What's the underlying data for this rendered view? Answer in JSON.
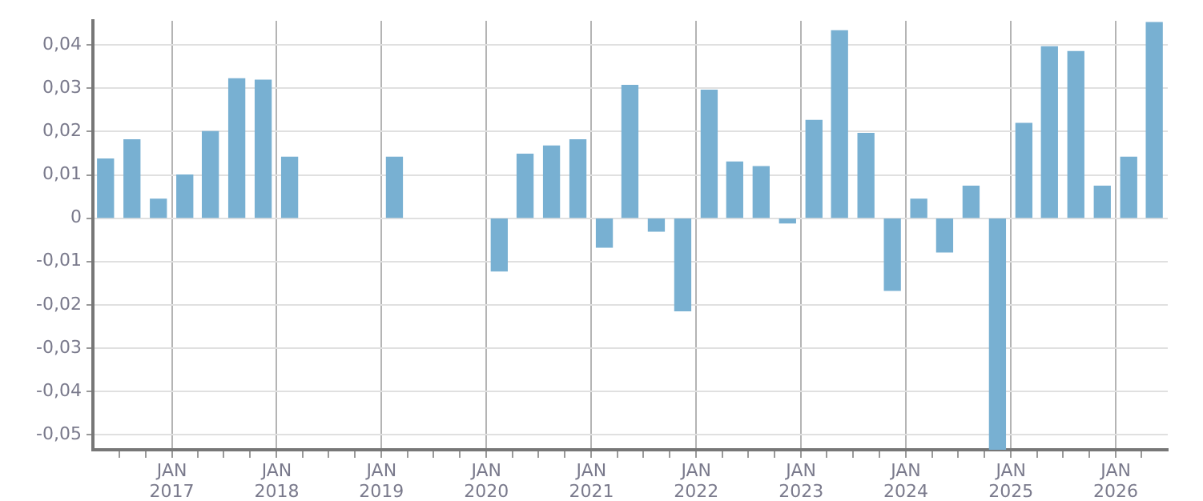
{
  "chart_data": {
    "type": "bar",
    "color": "#78b0d2",
    "x": [
      "2016-05-15",
      "2016-08-15",
      "2016-11-15",
      "2017-02-15",
      "2017-05-15",
      "2017-08-15",
      "2017-11-15",
      "2018-02-15",
      "2019-02-15",
      "2020-02-15",
      "2020-05-15",
      "2020-08-15",
      "2020-11-15",
      "2021-02-15",
      "2021-05-15",
      "2021-08-15",
      "2021-11-15",
      "2022-02-15",
      "2022-05-15",
      "2022-08-15",
      "2022-11-15",
      "2023-02-15",
      "2023-05-15",
      "2023-08-15",
      "2023-11-15",
      "2024-02-15",
      "2024-05-15",
      "2024-08-15",
      "2024-11-15",
      "2025-02-15",
      "2025-05-15",
      "2025-08-15",
      "2025-11-15",
      "2026-02-15",
      "2026-05-15"
    ],
    "values": [
      0.0137,
      0.0181,
      0.0044,
      0.01,
      0.02,
      0.0322,
      0.0319,
      0.0141,
      0.0141,
      -0.0122,
      0.0148,
      0.0167,
      0.0181,
      -0.0067,
      0.0307,
      -0.003,
      -0.0214,
      0.0296,
      0.013,
      0.0119,
      -0.0011,
      0.0226,
      0.0433,
      0.0196,
      -0.0167,
      0.0044,
      -0.0078,
      0.0074,
      -0.0535,
      0.0219,
      0.0396,
      0.0385,
      0.0074,
      0.0141,
      0.0452
    ],
    "xlim": [
      "2016-04-01",
      "2026-07-01"
    ],
    "xticks": [
      {
        "value": "2016-07-01",
        "label": null
      },
      {
        "value": "2016-10-01",
        "label": null
      },
      {
        "value": "2017-01-01",
        "label": "JAN\n2017"
      },
      {
        "value": "2017-04-01",
        "label": null
      },
      {
        "value": "2017-07-01",
        "label": null
      },
      {
        "value": "2017-10-01",
        "label": null
      },
      {
        "value": "2018-01-01",
        "label": "JAN\n2018"
      },
      {
        "value": "2018-04-01",
        "label": null
      },
      {
        "value": "2018-07-01",
        "label": null
      },
      {
        "value": "2018-10-01",
        "label": null
      },
      {
        "value": "2019-01-01",
        "label": "JAN\n2019"
      },
      {
        "value": "2019-04-01",
        "label": null
      },
      {
        "value": "2019-07-01",
        "label": null
      },
      {
        "value": "2019-10-01",
        "label": null
      },
      {
        "value": "2020-01-01",
        "label": "JAN\n2020"
      },
      {
        "value": "2020-04-01",
        "label": null
      },
      {
        "value": "2020-07-01",
        "label": null
      },
      {
        "value": "2020-10-01",
        "label": null
      },
      {
        "value": "2021-01-01",
        "label": "JAN\n2021"
      },
      {
        "value": "2021-04-01",
        "label": null
      },
      {
        "value": "2021-07-01",
        "label": null
      },
      {
        "value": "2021-10-01",
        "label": null
      },
      {
        "value": "2022-01-01",
        "label": "JAN\n2022"
      },
      {
        "value": "2022-04-01",
        "label": null
      },
      {
        "value": "2022-07-01",
        "label": null
      },
      {
        "value": "2022-10-01",
        "label": null
      },
      {
        "value": "2023-01-01",
        "label": "JAN\n2023"
      },
      {
        "value": "2023-04-01",
        "label": null
      },
      {
        "value": "2023-07-01",
        "label": null
      },
      {
        "value": "2023-10-01",
        "label": null
      },
      {
        "value": "2024-01-01",
        "label": "JAN\n2024"
      },
      {
        "value": "2024-04-01",
        "label": null
      },
      {
        "value": "2024-07-01",
        "label": null
      },
      {
        "value": "2024-10-01",
        "label": null
      },
      {
        "value": "2025-01-01",
        "label": "JAN\n2025"
      },
      {
        "value": "2025-04-01",
        "label": null
      },
      {
        "value": "2025-07-01",
        "label": null
      },
      {
        "value": "2025-10-01",
        "label": null
      },
      {
        "value": "2026-01-01",
        "label": "JAN\n2026"
      },
      {
        "value": "2026-04-01",
        "label": null
      }
    ],
    "ylim": [
      -0.0535,
      0.0456
    ],
    "yticks": [
      {
        "value": -0.05,
        "label": "-0,05"
      },
      {
        "value": -0.04,
        "label": "-0,04"
      },
      {
        "value": -0.03,
        "label": "-0,03"
      },
      {
        "value": -0.02,
        "label": "-0,02"
      },
      {
        "value": -0.01,
        "label": "-0,01"
      },
      0,
      {
        "value": 0.01,
        "label": "0,01"
      },
      {
        "value": 0.02,
        "label": "0,02"
      },
      {
        "value": 0.03,
        "label": "0,03"
      },
      {
        "value": 0.04,
        "label": "0,04"
      }
    ],
    "grid": true
  }
}
